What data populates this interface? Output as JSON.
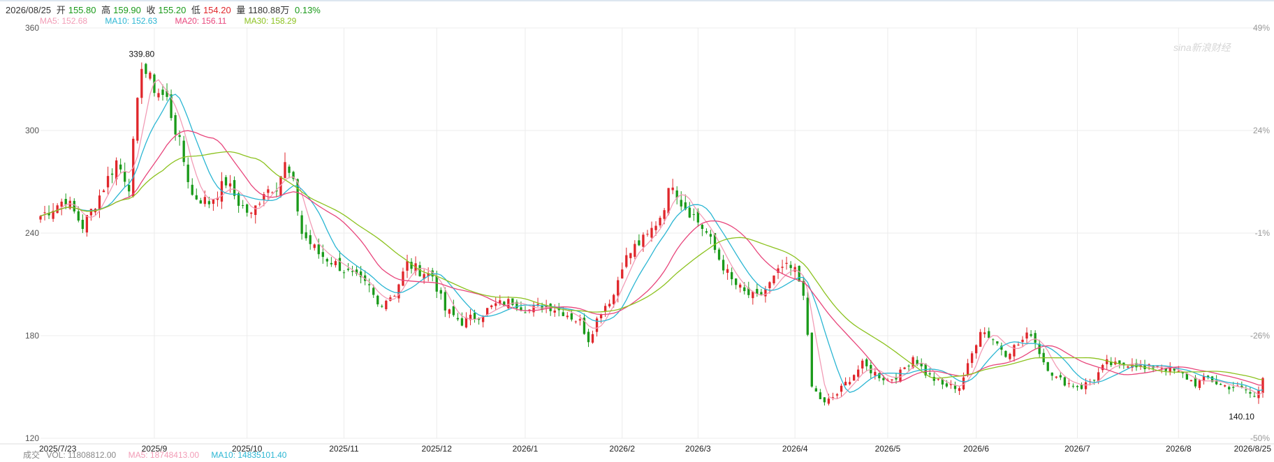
{
  "header": {
    "date": "2026/08/25",
    "open_label": "开",
    "open": "155.80",
    "high_label": "高",
    "high": "159.90",
    "close_label": "收",
    "close": "155.20",
    "low_label": "低",
    "low": "154.20",
    "volume_label": "量",
    "volume": "1180.88万",
    "change": "0.13%"
  },
  "ma_legend": [
    {
      "text": "MA5: 152.68",
      "color": "#f29cb6"
    },
    {
      "text": "MA10: 152.63",
      "color": "#2bb6d3"
    },
    {
      "text": "MA20: 156.11",
      "color": "#e8467c"
    },
    {
      "text": "MA30: 158.29",
      "color": "#8cc21f"
    }
  ],
  "volume_bar": {
    "label": "成交",
    "vol": "VOL: 11808812.00",
    "ma5": "MA5: 18748413.00",
    "ma10": "MA10: 14835101.40",
    "ma5_color": "#f29cb6",
    "ma10_color": "#2bb6d3"
  },
  "watermark": "sina新浪财经",
  "colors": {
    "up": "#e0262b",
    "down": "#1a9a1a",
    "grid": "#ececec",
    "axis_text": "#555555"
  },
  "chart_data": {
    "type": "candlestick",
    "ylim": [
      120,
      360
    ],
    "y_ticks": [
      "360",
      "300",
      "240",
      "180",
      "120"
    ],
    "right_ticks": [
      "49%",
      "24%",
      "-1%",
      "-26%",
      "-50%"
    ],
    "x_tick_labels": [
      "2025/7/23",
      "2025/9",
      "2025/10",
      "2025/11",
      "2025/12",
      "2026/1",
      "2026/2",
      "2026/3",
      "2026/4",
      "2026/5",
      "2026/6",
      "2026/7",
      "2026/8",
      "2026/8/25"
    ],
    "x_tick_positions": [
      0,
      27,
      49,
      72,
      94,
      115,
      138,
      156,
      179,
      201,
      222,
      246,
      270,
      290
    ],
    "annotations": [
      {
        "text": "339.80",
        "index": 24,
        "value": 339.8
      },
      {
        "text": "140.10",
        "index": 289,
        "value": 140.1
      }
    ],
    "anchors": [
      [
        0,
        250
      ],
      [
        6,
        260
      ],
      [
        10,
        244
      ],
      [
        14,
        262
      ],
      [
        18,
        282
      ],
      [
        21,
        268
      ],
      [
        24,
        338
      ],
      [
        27,
        325
      ],
      [
        30,
        318
      ],
      [
        33,
        292
      ],
      [
        36,
        262
      ],
      [
        40,
        258
      ],
      [
        44,
        270
      ],
      [
        47,
        258
      ],
      [
        50,
        250
      ],
      [
        53,
        265
      ],
      [
        56,
        268
      ],
      [
        58,
        280
      ],
      [
        60,
        268
      ],
      [
        62,
        240
      ],
      [
        66,
        228
      ],
      [
        70,
        222
      ],
      [
        74,
        215
      ],
      [
        78,
        208
      ],
      [
        80,
        198
      ],
      [
        84,
        205
      ],
      [
        87,
        222
      ],
      [
        90,
        218
      ],
      [
        93,
        215
      ],
      [
        96,
        195
      ],
      [
        100,
        188
      ],
      [
        104,
        192
      ],
      [
        108,
        198
      ],
      [
        112,
        200
      ],
      [
        116,
        195
      ],
      [
        120,
        198
      ],
      [
        124,
        194
      ],
      [
        128,
        188
      ],
      [
        130,
        178
      ],
      [
        133,
        195
      ],
      [
        136,
        204
      ],
      [
        138,
        222
      ],
      [
        141,
        232
      ],
      [
        144,
        238
      ],
      [
        147,
        250
      ],
      [
        150,
        270
      ],
      [
        152,
        258
      ],
      [
        155,
        250
      ],
      [
        158,
        240
      ],
      [
        161,
        225
      ],
      [
        164,
        212
      ],
      [
        167,
        205
      ],
      [
        170,
        202
      ],
      [
        173,
        210
      ],
      [
        176,
        220
      ],
      [
        179,
        218
      ],
      [
        181,
        206
      ],
      [
        183,
        150
      ],
      [
        186,
        140
      ],
      [
        189,
        146
      ],
      [
        192,
        155
      ],
      [
        195,
        163
      ],
      [
        198,
        158
      ],
      [
        201,
        154
      ],
      [
        204,
        158
      ],
      [
        207,
        168
      ],
      [
        210,
        158
      ],
      [
        214,
        151
      ],
      [
        218,
        150
      ],
      [
        220,
        162
      ],
      [
        223,
        184
      ],
      [
        226,
        178
      ],
      [
        229,
        170
      ],
      [
        232,
        175
      ],
      [
        235,
        182
      ],
      [
        238,
        165
      ],
      [
        241,
        155
      ],
      [
        244,
        152
      ],
      [
        247,
        150
      ],
      [
        250,
        155
      ],
      [
        253,
        164
      ],
      [
        256,
        162
      ],
      [
        259,
        165
      ],
      [
        262,
        160
      ],
      [
        265,
        163
      ],
      [
        268,
        160
      ],
      [
        271,
        157
      ],
      [
        274,
        152
      ],
      [
        277,
        155
      ],
      [
        280,
        151
      ],
      [
        283,
        150
      ],
      [
        286,
        148
      ],
      [
        288,
        144
      ],
      [
        289,
        141
      ],
      [
        290,
        155
      ]
    ]
  }
}
